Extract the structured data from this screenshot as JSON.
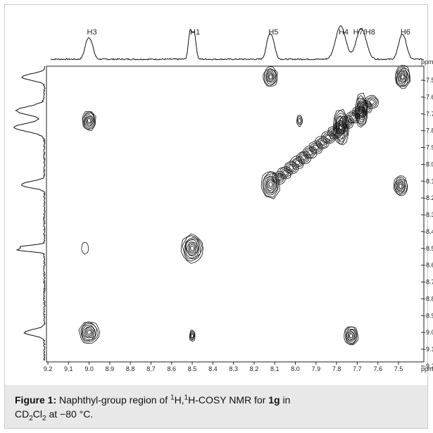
{
  "figure": {
    "peak_labels": [
      {
        "text": "H3",
        "ppm": 9.0
      },
      {
        "text": "H1",
        "ppm": 8.5
      },
      {
        "text": "H5",
        "ppm": 8.12
      },
      {
        "text": "H4",
        "ppm": 7.78
      },
      {
        "text": "H7/H8",
        "ppm": 7.68
      },
      {
        "text": "H6",
        "ppm": 7.48
      }
    ],
    "axis_unit": "ppm",
    "x_ticks": [
      "9.2",
      "9.1",
      "9.0",
      "8.9",
      "8.8",
      "8.7",
      "8.6",
      "8.5",
      "8.4",
      "8.3",
      "8.2",
      "8.1",
      "8.0",
      "7.9",
      "7.8",
      "7.7",
      "7.6",
      "7.5"
    ],
    "y_ticks": [
      "7.5",
      "7.6",
      "7.7",
      "7.8",
      "7.9",
      "8.0",
      "8.1",
      "8.2",
      "8.3",
      "8.4",
      "8.5",
      "8.6",
      "8.7",
      "8.8",
      "8.9",
      "9.0",
      "9.1",
      "9.2"
    ],
    "y_tick_display": [
      "-7.5",
      "-7.6",
      "-7.7",
      "-7.8",
      "-7.9",
      "-8.0",
      "-8.1",
      "-8.2",
      "-8.3",
      "-8.4",
      "-8.5",
      "-8.6",
      "-8.7",
      "-8.8",
      "-8.9",
      "-9.0",
      "-9.1",
      "-9.2"
    ]
  },
  "caption": {
    "label": "Figure 1:",
    "t1": " Naphthyl-group region of ",
    "sup1": "1",
    "t2": "H,",
    "sup2": "1",
    "t3": "H-COSY NMR for ",
    "bold": "1g",
    "t4": " in",
    "t5": "CD",
    "sub1": "2",
    "t6": "Cl",
    "sub2": "2",
    "t7": " at −80 °C."
  },
  "chart_data": {
    "type": "heatmap",
    "xlabel": "ppm",
    "ylabel": "ppm",
    "xlim": [
      9.2,
      7.43
    ],
    "ylim": [
      7.43,
      9.22
    ],
    "diagonal_peaks": [
      {
        "label": "H3",
        "ppm": 9.0
      },
      {
        "label": "H1",
        "ppm": 8.5
      },
      {
        "label": "H5",
        "ppm": 8.12
      },
      {
        "label": "H4",
        "ppm": 7.78
      },
      {
        "label": "H7/H8",
        "ppm": 7.68
      },
      {
        "label": "H6",
        "ppm": 7.48
      }
    ],
    "cross_peaks": [
      {
        "x": 9.0,
        "y": 7.74
      },
      {
        "x": 7.73,
        "y": 9.02
      },
      {
        "x": 8.12,
        "y": 7.48
      },
      {
        "x": 7.49,
        "y": 8.13
      },
      {
        "x": 8.5,
        "y": 9.02
      },
      {
        "x": 9.02,
        "y": 8.5
      },
      {
        "x": 7.98,
        "y": 7.74
      }
    ]
  }
}
